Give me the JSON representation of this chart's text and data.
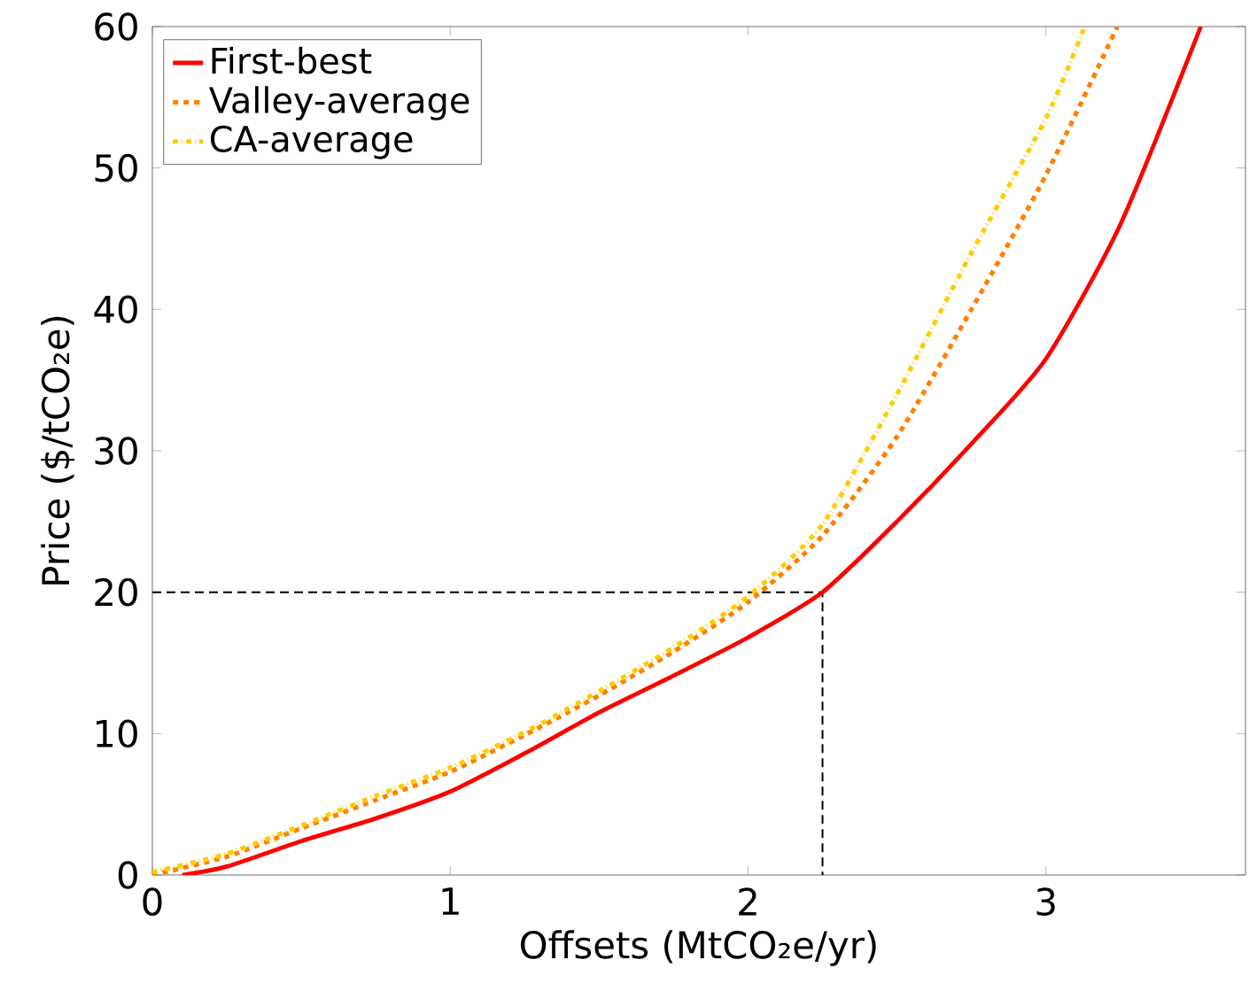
{
  "chart_data": {
    "type": "line",
    "xlabel": "Offsets (MtCO₂e/yr)",
    "ylabel": "Price ($/tCO₂e)",
    "xlim": [
      0,
      3.67
    ],
    "ylim": [
      0,
      60
    ],
    "xticks": [
      0,
      1,
      2,
      3
    ],
    "yticks": [
      0,
      10,
      20,
      30,
      40,
      50,
      60
    ],
    "grid": false,
    "legend": "top left",
    "marker": "none",
    "series": [
      {
        "name": "First-best",
        "color": "#ff0000",
        "line_style": "solid",
        "x": [
          0.1,
          0.25,
          0.5,
          0.75,
          1,
          1.25,
          1.5,
          1.75,
          2,
          2.25,
          2.5,
          2.75,
          3,
          3.25,
          3.52
        ],
        "values": [
          0,
          0.6,
          2.4,
          4.0,
          5.9,
          8.6,
          11.5,
          14.1,
          16.8,
          20,
          25,
          30.5,
          36.5,
          46,
          60
        ]
      },
      {
        "name": "Valley-average",
        "color": "#ff8000",
        "line_style": "dashed",
        "x": [
          0,
          0.25,
          0.5,
          0.75,
          1,
          1.25,
          1.5,
          1.75,
          2,
          2.25,
          2.5,
          2.75,
          3,
          3.24
        ],
        "values": [
          0,
          1.3,
          3.3,
          5.3,
          7.3,
          9.9,
          12.7,
          15.8,
          19.3,
          24,
          31,
          40,
          49.5,
          60
        ]
      },
      {
        "name": "CA-average",
        "color": "#ffcc00",
        "line_style": "dashdot",
        "x": [
          0,
          0.25,
          0.5,
          0.75,
          1,
          1.25,
          1.5,
          1.75,
          2,
          2.25,
          2.5,
          2.75,
          3,
          3.13
        ],
        "values": [
          0.2,
          1.5,
          3.5,
          5.6,
          7.6,
          10.1,
          13,
          16.1,
          19.7,
          24.8,
          34,
          44,
          53.5,
          60
        ]
      },
      {
        "color": "#000000",
        "line_style": "dashed",
        "x": [
          0,
          2.25,
          2.25
        ],
        "values": [
          20,
          20,
          0
        ]
      }
    ]
  }
}
